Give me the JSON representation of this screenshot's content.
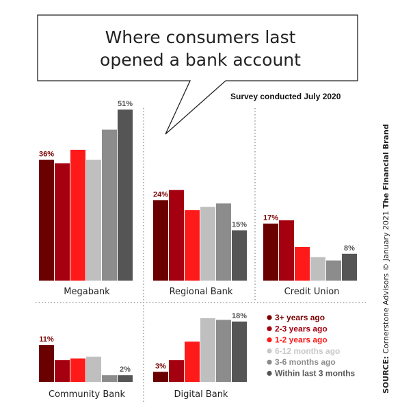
{
  "chart_data": {
    "type": "bar",
    "title_lines": [
      "Where consumers last",
      "opened a bank account"
    ],
    "subtitle": "Survey conducted July 2020",
    "source_label": "SOURCE:",
    "source_text": " Cornerstone Advisors © January 2021 ",
    "source_brand": "The Financial Brand",
    "colors": [
      "#6b0000",
      "#a50010",
      "#ff1a1a",
      "#bfbfbf",
      "#8c8c8c",
      "#555555"
    ],
    "legend": [
      "3+ years ago",
      "2-3 years ago",
      "1-2 years ago",
      "6-12 months ago",
      "3-6 months ago",
      "Within last 3 months"
    ],
    "legend_colors": [
      "#7a0000",
      "#a50010",
      "#ff1a1a",
      "#c8c8c8",
      "#8c8c8c",
      "#555555"
    ],
    "panels": [
      {
        "name": "Megabank",
        "values": [
          36,
          35,
          39,
          36,
          45,
          51
        ],
        "labels": [
          "36%",
          "",
          "",
          "",
          "",
          "51%"
        ]
      },
      {
        "name": "Regional Bank",
        "values": [
          24,
          27,
          21,
          22,
          23,
          15
        ],
        "labels": [
          "24%",
          "",
          "",
          "",
          "",
          "15%"
        ]
      },
      {
        "name": "Credit Union",
        "values": [
          17,
          18,
          10,
          7,
          6,
          8
        ],
        "labels": [
          "17%",
          "",
          "",
          "",
          "",
          "8%"
        ]
      },
      {
        "name": "Community Bank",
        "values": [
          11,
          6.5,
          7,
          7.5,
          2,
          2
        ],
        "labels": [
          "11%",
          "",
          "",
          "",
          "",
          "2%"
        ]
      },
      {
        "name": "Digital Bank",
        "values": [
          3,
          6.5,
          12,
          19,
          18.5,
          18
        ],
        "labels": [
          "3%",
          "",
          "",
          "",
          "",
          "18%"
        ]
      }
    ]
  }
}
